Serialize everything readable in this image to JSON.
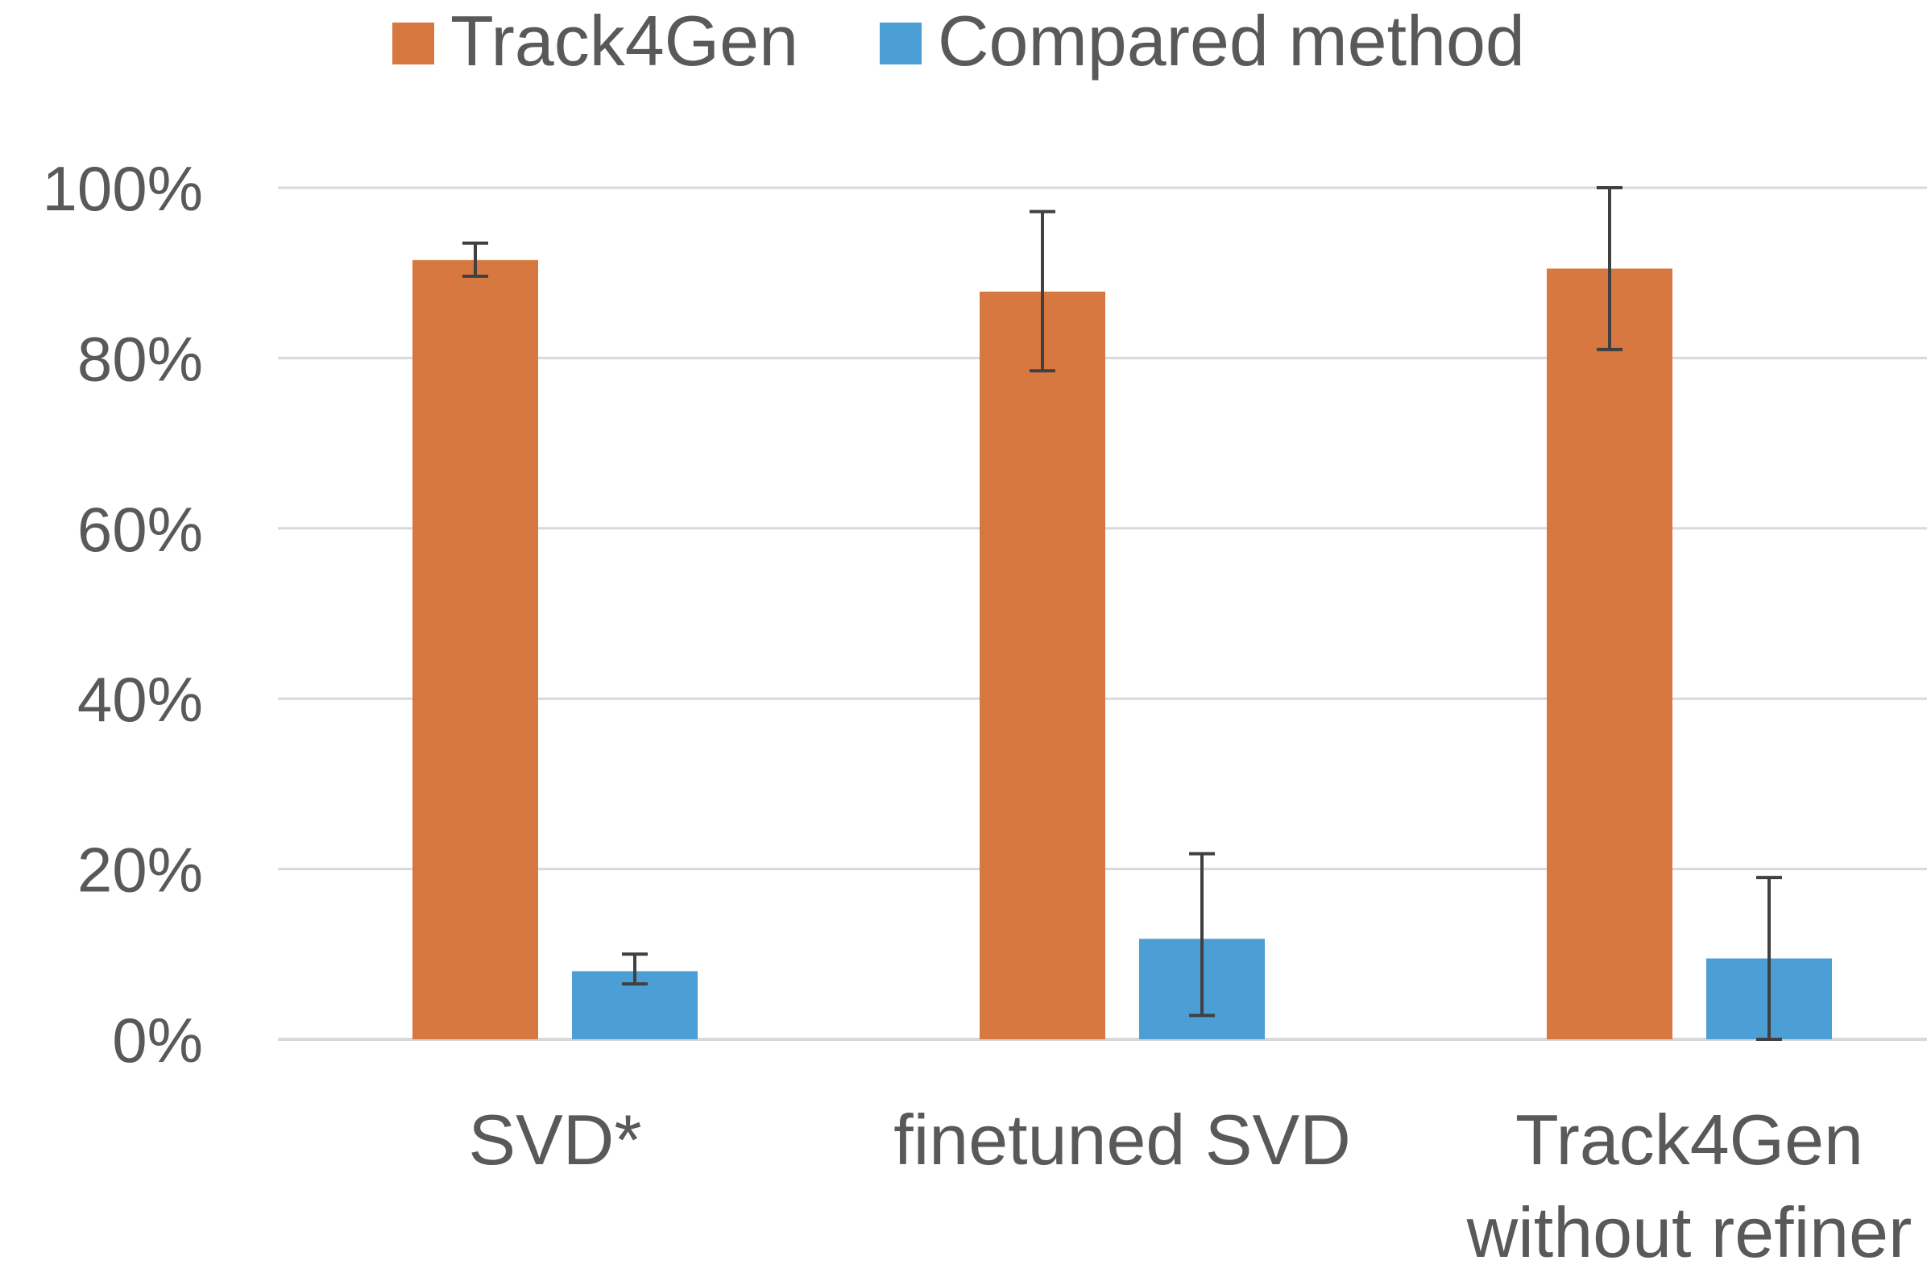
{
  "chart_data": {
    "type": "bar",
    "title": "",
    "xlabel": "",
    "ylabel": "",
    "ylim": [
      0,
      100
    ],
    "y_ticks": [
      0,
      20,
      40,
      60,
      80,
      100
    ],
    "y_tick_labels": [
      "0%",
      "20%",
      "40%",
      "60%",
      "80%",
      "100%"
    ],
    "grid": true,
    "legend_position": "top",
    "categories": [
      [
        "SVD*"
      ],
      [
        "finetuned SVD"
      ],
      [
        "Track4Gen",
        "without refiner"
      ]
    ],
    "series": [
      {
        "name": "Track4Gen",
        "color": "#D87841",
        "values": [
          91.5,
          87.8,
          90.5
        ],
        "error_low": [
          89.6,
          78.5,
          81.0
        ],
        "error_high": [
          93.5,
          97.2,
          100.0
        ]
      },
      {
        "name": "Compared method",
        "color": "#4B9FD5",
        "values": [
          8.0,
          11.8,
          9.5
        ],
        "error_low": [
          6.5,
          2.8,
          0.0
        ],
        "error_high": [
          10.0,
          21.8,
          19.0
        ]
      }
    ],
    "gridline_color": "#D9D9D9",
    "error_bar_color": "#404040"
  }
}
